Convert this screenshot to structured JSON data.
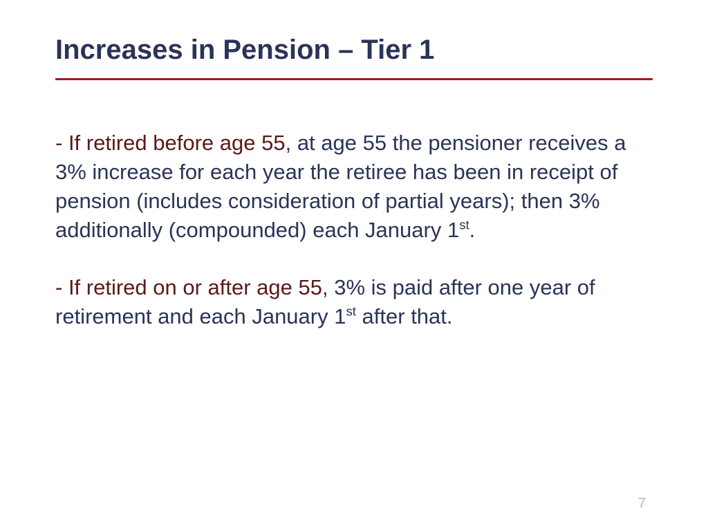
{
  "title": "Increases in Pension – Tier 1",
  "bullets": [
    {
      "dash": "-  ",
      "lead": "If retired before age 55",
      "rest_before_sup": ", at age 55 the pensioner receives a 3% increase for each year the retiree has been in receipt of pension (includes consideration of partial years); then 3% additionally (compounded) each January 1",
      "sup": "st",
      "rest_after_sup": "."
    },
    {
      "dash": "-  ",
      "lead": "If retired on or after age 55",
      "rest_before_sup": ", 3% is paid after one year of retirement and each January 1",
      "sup": "st",
      "rest_after_sup": " after that."
    }
  ],
  "page_number": "7",
  "colors": {
    "title": "#2a3457",
    "body": "#2a3457",
    "lead": "#5a1a1a",
    "rule": "#a01e1e",
    "page_num": "#b5b5b5",
    "background": "#ffffff"
  }
}
